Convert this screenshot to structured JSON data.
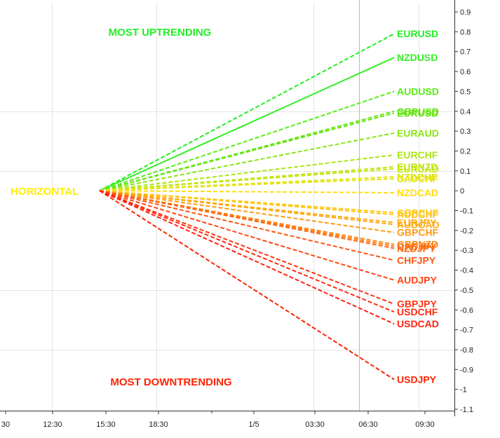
{
  "chart_data": {
    "type": "line",
    "title": "",
    "xlabel": "",
    "ylabel": "",
    "ylim": [
      -1.1,
      0.9
    ],
    "y_ticks": [
      0.9,
      0.8,
      0.7,
      0.6,
      0.5,
      0.4,
      0.3,
      0.2,
      0.1,
      0,
      -0.1,
      -0.2,
      -0.3,
      -0.4,
      -0.5,
      -0.6,
      -0.7,
      -0.8,
      -0.9,
      -1,
      -1.1
    ],
    "x_ticks": [
      "30",
      "12:30",
      "15:30",
      "18:30",
      "1/5",
      "03:30",
      "06:30",
      "09:30"
    ],
    "x_start": "15:30",
    "grid": true,
    "annotations": {
      "top": "MOST UPTRENDING",
      "middle": "HORIZONTAL",
      "bottom": "MOST DOWNTRENDING"
    },
    "colors": {
      "top": "#22ee22",
      "middle": "#ffee00",
      "bottom": "#ff2200"
    },
    "series": [
      {
        "name": "EURUSD",
        "value": 0.79,
        "style": "dashed",
        "color": "#22ee22"
      },
      {
        "name": "NZDUSD",
        "value": 0.67,
        "style": "solid",
        "color": "#33ee22"
      },
      {
        "name": "AUDUSD",
        "value": 0.5,
        "style": "dashed",
        "color": "#55ee11"
      },
      {
        "name": "GBPUSD",
        "value": 0.4,
        "style": "dashed",
        "color": "#66e611"
      },
      {
        "name": "EURUSD",
        "value": 0.39,
        "style": "dashed",
        "color": "#66e611"
      },
      {
        "name": "EURAUD",
        "value": 0.29,
        "style": "dashed",
        "color": "#88e611"
      },
      {
        "name": "EURCHF",
        "value": 0.18,
        "style": "dashed",
        "color": "#aae611"
      },
      {
        "name": "EURNZD",
        "value": 0.12,
        "style": "dashed",
        "color": "#bbe611"
      },
      {
        "name": "EURCAD",
        "value": 0.11,
        "style": "dashed",
        "color": "#c8e611"
      },
      {
        "name": "NZDCHF",
        "value": 0.07,
        "style": "dashed",
        "color": "#dde611"
      },
      {
        "name": "CADCHF",
        "value": 0.06,
        "style": "dashed",
        "color": "#e6e211"
      },
      {
        "name": "NZDCAD",
        "value": -0.01,
        "style": "dashed",
        "color": "#ffdd11"
      },
      {
        "name": "GBPCHF",
        "value": -0.11,
        "style": "dashed",
        "color": "#ffcc11"
      },
      {
        "name": "AUDCHF",
        "value": -0.12,
        "style": "dashed",
        "color": "#ffc211"
      },
      {
        "name": "EURJPY",
        "value": -0.16,
        "style": "dashed",
        "color": "#ffaa11"
      },
      {
        "name": "AUDCAD",
        "value": -0.17,
        "style": "dashed",
        "color": "#ffaa11"
      },
      {
        "name": "GBPCHF",
        "value": -0.21,
        "style": "dashed",
        "color": "#ff9911"
      },
      {
        "name": "GBPNZD",
        "value": -0.27,
        "style": "dashed",
        "color": "#ff8811"
      },
      {
        "name": "CADJPY",
        "value": -0.28,
        "style": "dashed",
        "color": "#ff7711"
      },
      {
        "name": "NZDJPY",
        "value": -0.29,
        "style": "dashed",
        "color": "#ff6611"
      },
      {
        "name": "CHFJPY",
        "value": -0.35,
        "style": "dashed",
        "color": "#ff5511"
      },
      {
        "name": "AUDJPY",
        "value": -0.45,
        "style": "dashed",
        "color": "#ff4411"
      },
      {
        "name": "GBPJPY",
        "value": -0.57,
        "style": "dashed",
        "color": "#ff3311"
      },
      {
        "name": "USDCHF",
        "value": -0.61,
        "style": "dashed",
        "color": "#ff2a11"
      },
      {
        "name": "USDCAD",
        "value": -0.67,
        "style": "dashed",
        "color": "#ff2211"
      },
      {
        "name": "USDJPY",
        "value": -0.95,
        "style": "dashed",
        "color": "#ff2200"
      }
    ]
  }
}
